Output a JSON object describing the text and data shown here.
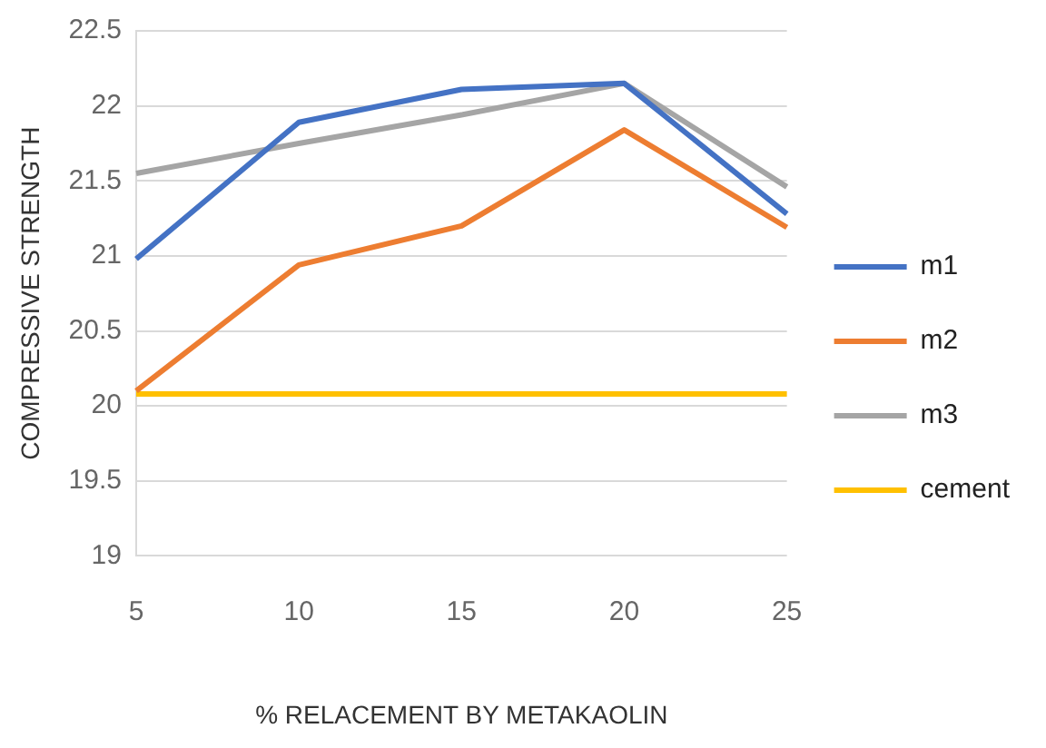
{
  "chart_data": {
    "type": "line",
    "xlabel": "% RELACEMENT BY METAKAOLIN",
    "ylabel": "COMPRESSIVE STRENGTH",
    "categories": [
      "5",
      "10",
      "15",
      "20",
      "25"
    ],
    "series": [
      {
        "name": "m1",
        "color": "#4472c4",
        "values": [
          20.98,
          21.89,
          22.11,
          22.15,
          21.28
        ]
      },
      {
        "name": "m2",
        "color": "#ed7d31",
        "values": [
          20.1,
          20.94,
          21.2,
          21.84,
          21.19
        ]
      },
      {
        "name": "m3",
        "color": "#a5a5a5",
        "values": [
          21.55,
          21.75,
          21.94,
          22.15,
          21.46
        ]
      },
      {
        "name": "cement",
        "color": "#ffc000",
        "values": [
          20.08,
          20.08,
          20.08,
          20.08,
          20.08
        ]
      }
    ],
    "ylim": [
      19,
      22.5
    ],
    "yticks": [
      19,
      19.5,
      20,
      20.5,
      21,
      21.5,
      22,
      22.5
    ],
    "grid": "y",
    "legend": "right",
    "marker": "none"
  }
}
